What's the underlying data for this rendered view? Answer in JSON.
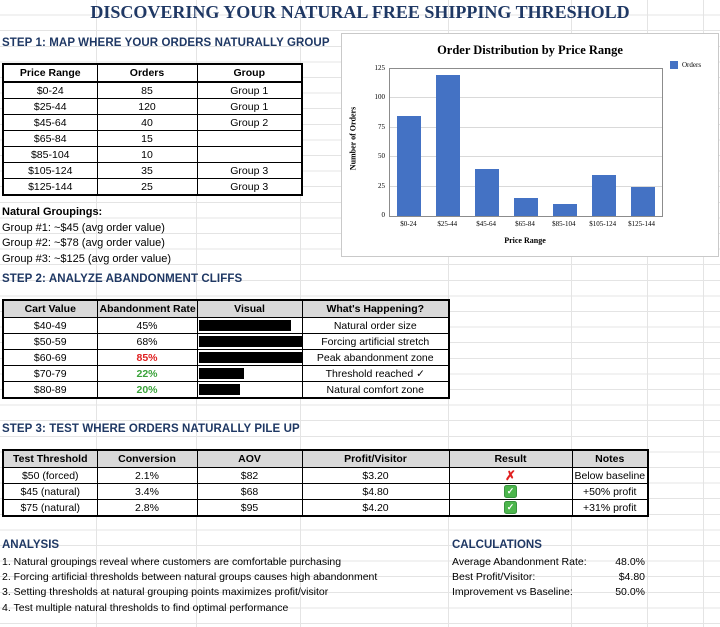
{
  "title": "DISCOVERING YOUR NATURAL FREE SHIPPING THRESHOLD",
  "colors": {
    "heading_navy": "#1F3864",
    "bar_blue": "#4472C4",
    "bad_red": "#DF2020",
    "good_green": "#3BA33B",
    "header_fill": "#d9d9d9"
  },
  "step1": {
    "heading": "STEP 1: MAP WHERE YOUR ORDERS NATURALLY GROUP",
    "table": {
      "headers": [
        "Price Range",
        "Orders",
        "Group"
      ],
      "rows": [
        [
          "$0-24",
          "85",
          "Group 1"
        ],
        [
          "$25-44",
          "120",
          "Group 1"
        ],
        [
          "$45-64",
          "40",
          "Group 2"
        ],
        [
          "$65-84",
          "15",
          ""
        ],
        [
          "$85-104",
          "10",
          ""
        ],
        [
          "$105-124",
          "35",
          "Group 3"
        ],
        [
          "$125-144",
          "25",
          "Group 3"
        ]
      ]
    },
    "groupings": {
      "title": "Natural Groupings:",
      "items": [
        "Group #1: ~$45 (avg order value)",
        "Group #2: ~$78 (avg order value)",
        "Group #3: ~$125 (avg order value)"
      ]
    }
  },
  "chart_data": {
    "type": "bar",
    "title": "Order Distribution by Price Range",
    "categories": [
      "$0-24",
      "$25-44",
      "$45-64",
      "$65-84",
      "$85-104",
      "$105-124",
      "$125-144"
    ],
    "values": [
      85,
      120,
      40,
      15,
      10,
      35,
      25
    ],
    "series_name": "Orders",
    "xlabel": "Price Range",
    "ylabel": "Number of Orders",
    "ylim": [
      0,
      125
    ],
    "yticks": [
      0,
      25,
      50,
      75,
      100,
      125
    ],
    "grid": true,
    "legend_position": "top-right",
    "bar_color": "#4472C4"
  },
  "step2": {
    "heading": "STEP 2: ANALYZE ABANDONMENT CLIFFS",
    "headers": [
      "Cart Value",
      "Abandonment Rate",
      "Visual",
      "What's Happening?"
    ],
    "rows": [
      {
        "cart": "$40-49",
        "rate": "45%",
        "status": "neutral",
        "note": "Natural order size"
      },
      {
        "cart": "$50-59",
        "rate": "68%",
        "status": "neutral",
        "note": "Forcing artificial stretch"
      },
      {
        "cart": "$60-69",
        "rate": "85%",
        "status": "bad",
        "note": "Peak abandonment zone"
      },
      {
        "cart": "$70-79",
        "rate": "22%",
        "status": "good",
        "note": "Threshold reached ✓"
      },
      {
        "cart": "$80-89",
        "rate": "20%",
        "status": "good",
        "note": "Natural comfort zone"
      }
    ]
  },
  "step3": {
    "heading": "STEP 3: TEST WHERE ORDERS NATURALLY PILE UP",
    "table": {
      "headers": [
        "Test Threshold",
        "Conversion",
        "AOV",
        "Profit/Visitor",
        "Result",
        "Notes"
      ],
      "rows": [
        {
          "threshold": "$50 (forced)",
          "conversion": "2.1%",
          "aov": "$82",
          "profit": "$3.20",
          "result": "fail",
          "result_glyph": "✗",
          "notes": "Below baseline"
        },
        {
          "threshold": "$45 (natural)",
          "conversion": "3.4%",
          "aov": "$68",
          "profit": "$4.80",
          "result": "pass",
          "result_glyph": "✓",
          "notes": "+50% profit"
        },
        {
          "threshold": "$75 (natural)",
          "conversion": "2.8%",
          "aov": "$95",
          "profit": "$4.20",
          "result": "pass",
          "result_glyph": "✓",
          "notes": "+31% profit"
        }
      ]
    }
  },
  "analysis": {
    "heading": "ANALYSIS",
    "items": [
      "1. Natural groupings reveal where customers are comfortable purchasing",
      "2. Forcing artificial thresholds between natural groups causes high abandonment",
      "3. Setting thresholds at natural grouping points maximizes profit/visitor",
      "4. Test multiple natural thresholds to find optimal performance"
    ]
  },
  "calculations": {
    "heading": "CALCULATIONS",
    "rows": [
      {
        "label": "Average Abandonment Rate:",
        "value": "48.0%"
      },
      {
        "label": "Best Profit/Visitor:",
        "value": "$4.80"
      },
      {
        "label": "Improvement vs Baseline:",
        "value": "50.0%"
      }
    ]
  }
}
